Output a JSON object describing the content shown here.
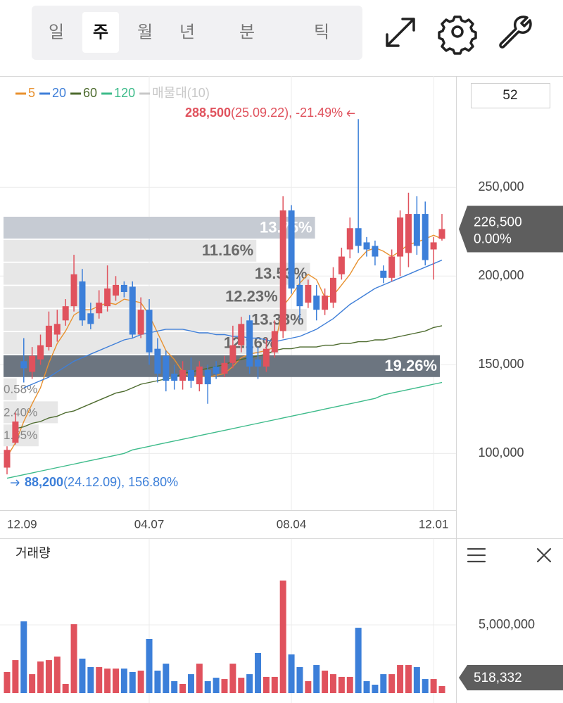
{
  "toolbar": {
    "tabs": [
      "일",
      "주",
      "월",
      "년",
      "분",
      "틱"
    ],
    "selected": 1
  },
  "period_input": "52",
  "chart_data": {
    "type": "candlestick",
    "categories": [
      "12.09",
      null,
      null,
      null,
      null,
      null,
      null,
      null,
      null,
      null,
      null,
      null,
      null,
      null,
      null,
      null,
      null,
      "04.07",
      null,
      null,
      null,
      null,
      null,
      null,
      null,
      null,
      null,
      null,
      null,
      null,
      null,
      null,
      null,
      null,
      "08.04",
      null,
      null,
      null,
      null,
      null,
      null,
      null,
      null,
      null,
      null,
      null,
      null,
      null,
      null,
      null,
      null,
      "12.01",
      null
    ],
    "candles": {
      "open": [
        92000,
        106000,
        152000,
        146000,
        153000,
        160000,
        167000,
        175000,
        183000,
        197000,
        179000,
        179000,
        183000,
        189000,
        195000,
        194000,
        167000,
        181000,
        159000,
        155000,
        145000,
        141000,
        147000,
        139000,
        147000,
        149000,
        145000,
        151000,
        161000,
        175000,
        153000,
        149000,
        157000,
        169000,
        237000,
        195000,
        185000,
        189000,
        181000,
        185000,
        201000,
        215000,
        227000,
        219000,
        217000,
        203000,
        199000,
        211000,
        213000,
        235000,
        235000,
        215000,
        221000
      ],
      "high": [
        104000,
        123000,
        165000,
        160000,
        167000,
        180000,
        181000,
        187000,
        212000,
        204000,
        185000,
        192000,
        206000,
        200000,
        197000,
        197000,
        188000,
        187000,
        165000,
        158000,
        150000,
        152000,
        154000,
        152000,
        150000,
        152000,
        155000,
        172000,
        177000,
        178000,
        160000,
        165000,
        175000,
        245000,
        240000,
        200000,
        198000,
        195000,
        193000,
        205000,
        216000,
        233000,
        288500,
        222000,
        220000,
        206000,
        215000,
        237000,
        247000,
        245000,
        242000,
        222000,
        235000
      ],
      "low": [
        88200,
        105000,
        140000,
        142000,
        150000,
        158000,
        163000,
        172000,
        180000,
        172000,
        170000,
        176000,
        180000,
        186000,
        188000,
        165000,
        165000,
        150000,
        140000,
        135000,
        136000,
        136000,
        137000,
        135000,
        128000,
        142000,
        143000,
        148000,
        157000,
        145000,
        142000,
        146000,
        154000,
        165000,
        190000,
        175000,
        182000,
        175000,
        178000,
        182000,
        198000,
        210000,
        213000,
        211000,
        206000,
        196000,
        197000,
        200000,
        205000,
        212000,
        206000,
        198000,
        220000
      ],
      "close": [
        102000,
        118000,
        148000,
        155000,
        161000,
        172000,
        173000,
        183000,
        201000,
        175000,
        173000,
        185000,
        193000,
        195000,
        191000,
        167000,
        181000,
        157000,
        145000,
        141000,
        141000,
        147000,
        141000,
        149000,
        139000,
        145000,
        151000,
        161000,
        173000,
        149000,
        149000,
        159000,
        169000,
        237000,
        193000,
        183000,
        195000,
        181000,
        189000,
        199000,
        211000,
        227000,
        217000,
        215000,
        211000,
        199000,
        211000,
        233000,
        235000,
        217000,
        209000,
        219000,
        226500
      ]
    },
    "up_color": "#e0525d",
    "down_color": "#3c7fd9",
    "ma": [
      {
        "name": "5",
        "color": "#e8912f",
        "values": [
          98000,
          106000,
          118000,
          128000,
          137000,
          151000,
          162000,
          169000,
          178000,
          181000,
          181000,
          183000,
          185000,
          184000,
          187000,
          186000,
          185000,
          178000,
          168000,
          158000,
          153000,
          146000,
          143000,
          144000,
          143000,
          144000,
          145000,
          149000,
          154000,
          156000,
          157000,
          158000,
          160000,
          183000,
          189000,
          196000,
          201000,
          198000,
          188000,
          189000,
          195000,
          201000,
          209000,
          214000,
          216000,
          214000,
          211000,
          214000,
          218000,
          219000,
          221000,
          223000,
          221000
        ]
      },
      {
        "name": "20",
        "color": "#3f7fd8",
        "values": [
          null,
          null,
          137000,
          139000,
          141000,
          143000,
          146000,
          149000,
          152000,
          154000,
          156000,
          158000,
          160000,
          162000,
          164000,
          165000,
          167000,
          168000,
          169000,
          170000,
          170000,
          170000,
          169000,
          168000,
          168000,
          167000,
          167000,
          166000,
          166000,
          165000,
          165000,
          164000,
          163000,
          164000,
          165000,
          166000,
          168000,
          170000,
          173000,
          176000,
          180000,
          184000,
          187000,
          190000,
          193000,
          195000,
          197000,
          199000,
          201000,
          203000,
          205000,
          207000,
          209000
        ]
      },
      {
        "name": "60",
        "color": "#4d6b2e",
        "values": [
          null,
          114000,
          115000,
          117000,
          118000,
          120000,
          121000,
          123000,
          124000,
          126000,
          128000,
          130000,
          132000,
          134000,
          135000,
          137000,
          139000,
          140000,
          141000,
          142000,
          143000,
          145000,
          146000,
          147000,
          148000,
          149000,
          150000,
          152000,
          153000,
          154000,
          155000,
          156000,
          158000,
          159000,
          159000,
          160000,
          160000,
          160000,
          161000,
          161000,
          162000,
          162000,
          163000,
          163000,
          164000,
          164000,
          165000,
          166000,
          167000,
          168000,
          169000,
          171000,
          172000
        ]
      },
      {
        "name": "120",
        "color": "#3dbb8a",
        "values": [
          86000,
          87000,
          88000,
          89000,
          90000,
          91000,
          92000,
          93000,
          94000,
          95000,
          96000,
          97000,
          98000,
          99000,
          100000,
          102000,
          103000,
          104000,
          105000,
          106000,
          107000,
          108000,
          109000,
          110000,
          111000,
          112000,
          113000,
          114000,
          115000,
          116000,
          117000,
          118000,
          119000,
          120000,
          121000,
          122000,
          123000,
          124000,
          125000,
          126000,
          127000,
          128000,
          129000,
          130000,
          131000,
          133000,
          134000,
          135000,
          136000,
          137000,
          138000,
          139000,
          140000
        ]
      }
    ],
    "volume_profile": {
      "name": "매물대(10)",
      "color": "#c8c8c8",
      "values": [
        13.75,
        11.16,
        13.53,
        12.23,
        13.38,
        12.16,
        19.26,
        0.58,
        2.4,
        1.55
      ],
      "value_labels": [
        "13.75%",
        "11.16%",
        "13.53%",
        "12.23%",
        "13.38%",
        "12.16%",
        "19.26%",
        "0.58%",
        "2.40%",
        "1.55%"
      ]
    },
    "ylim": [
      68000,
      312000
    ],
    "yticks": [
      {
        "value": 100000,
        "label": "100,000"
      },
      {
        "value": 150000,
        "label": "150,000"
      },
      {
        "value": 200000,
        "label": "200,000"
      },
      {
        "value": 250000,
        "label": "250,000"
      }
    ],
    "grid": true,
    "max_note": {
      "price": "288,500",
      "text": "(25.09.22), -21.49%"
    },
    "min_note": {
      "price": "88,200",
      "text": "(24.12.09), 156.80%"
    },
    "price_badge": {
      "label": "226,500",
      "change": "0.00%"
    },
    "volume": {
      "title": "거래량",
      "values": [
        1550000,
        2420000,
        5260000,
        1390000,
        2320000,
        2420000,
        2680000,
        670000,
        5050000,
        2530000,
        1910000,
        1910000,
        1800000,
        1800000,
        1800000,
        1550000,
        1650000,
        3970000,
        1650000,
        2160000,
        880000,
        670000,
        1390000,
        2160000,
        880000,
        1130000,
        1030000,
        2160000,
        1130000,
        1390000,
        2940000,
        1190000,
        1190000,
        8250000,
        2840000,
        1910000,
        880000,
        2060000,
        1650000,
        1390000,
        1190000,
        1190000,
        4790000,
        880000,
        620000,
        1390000,
        1390000,
        2060000,
        2060000,
        1910000,
        1030000,
        1030000,
        518332
      ],
      "ylim": [
        0,
        9280000
      ],
      "yticks": [
        {
          "value": 5000000,
          "label": "5,000,000"
        }
      ],
      "badge": "518,332"
    }
  }
}
